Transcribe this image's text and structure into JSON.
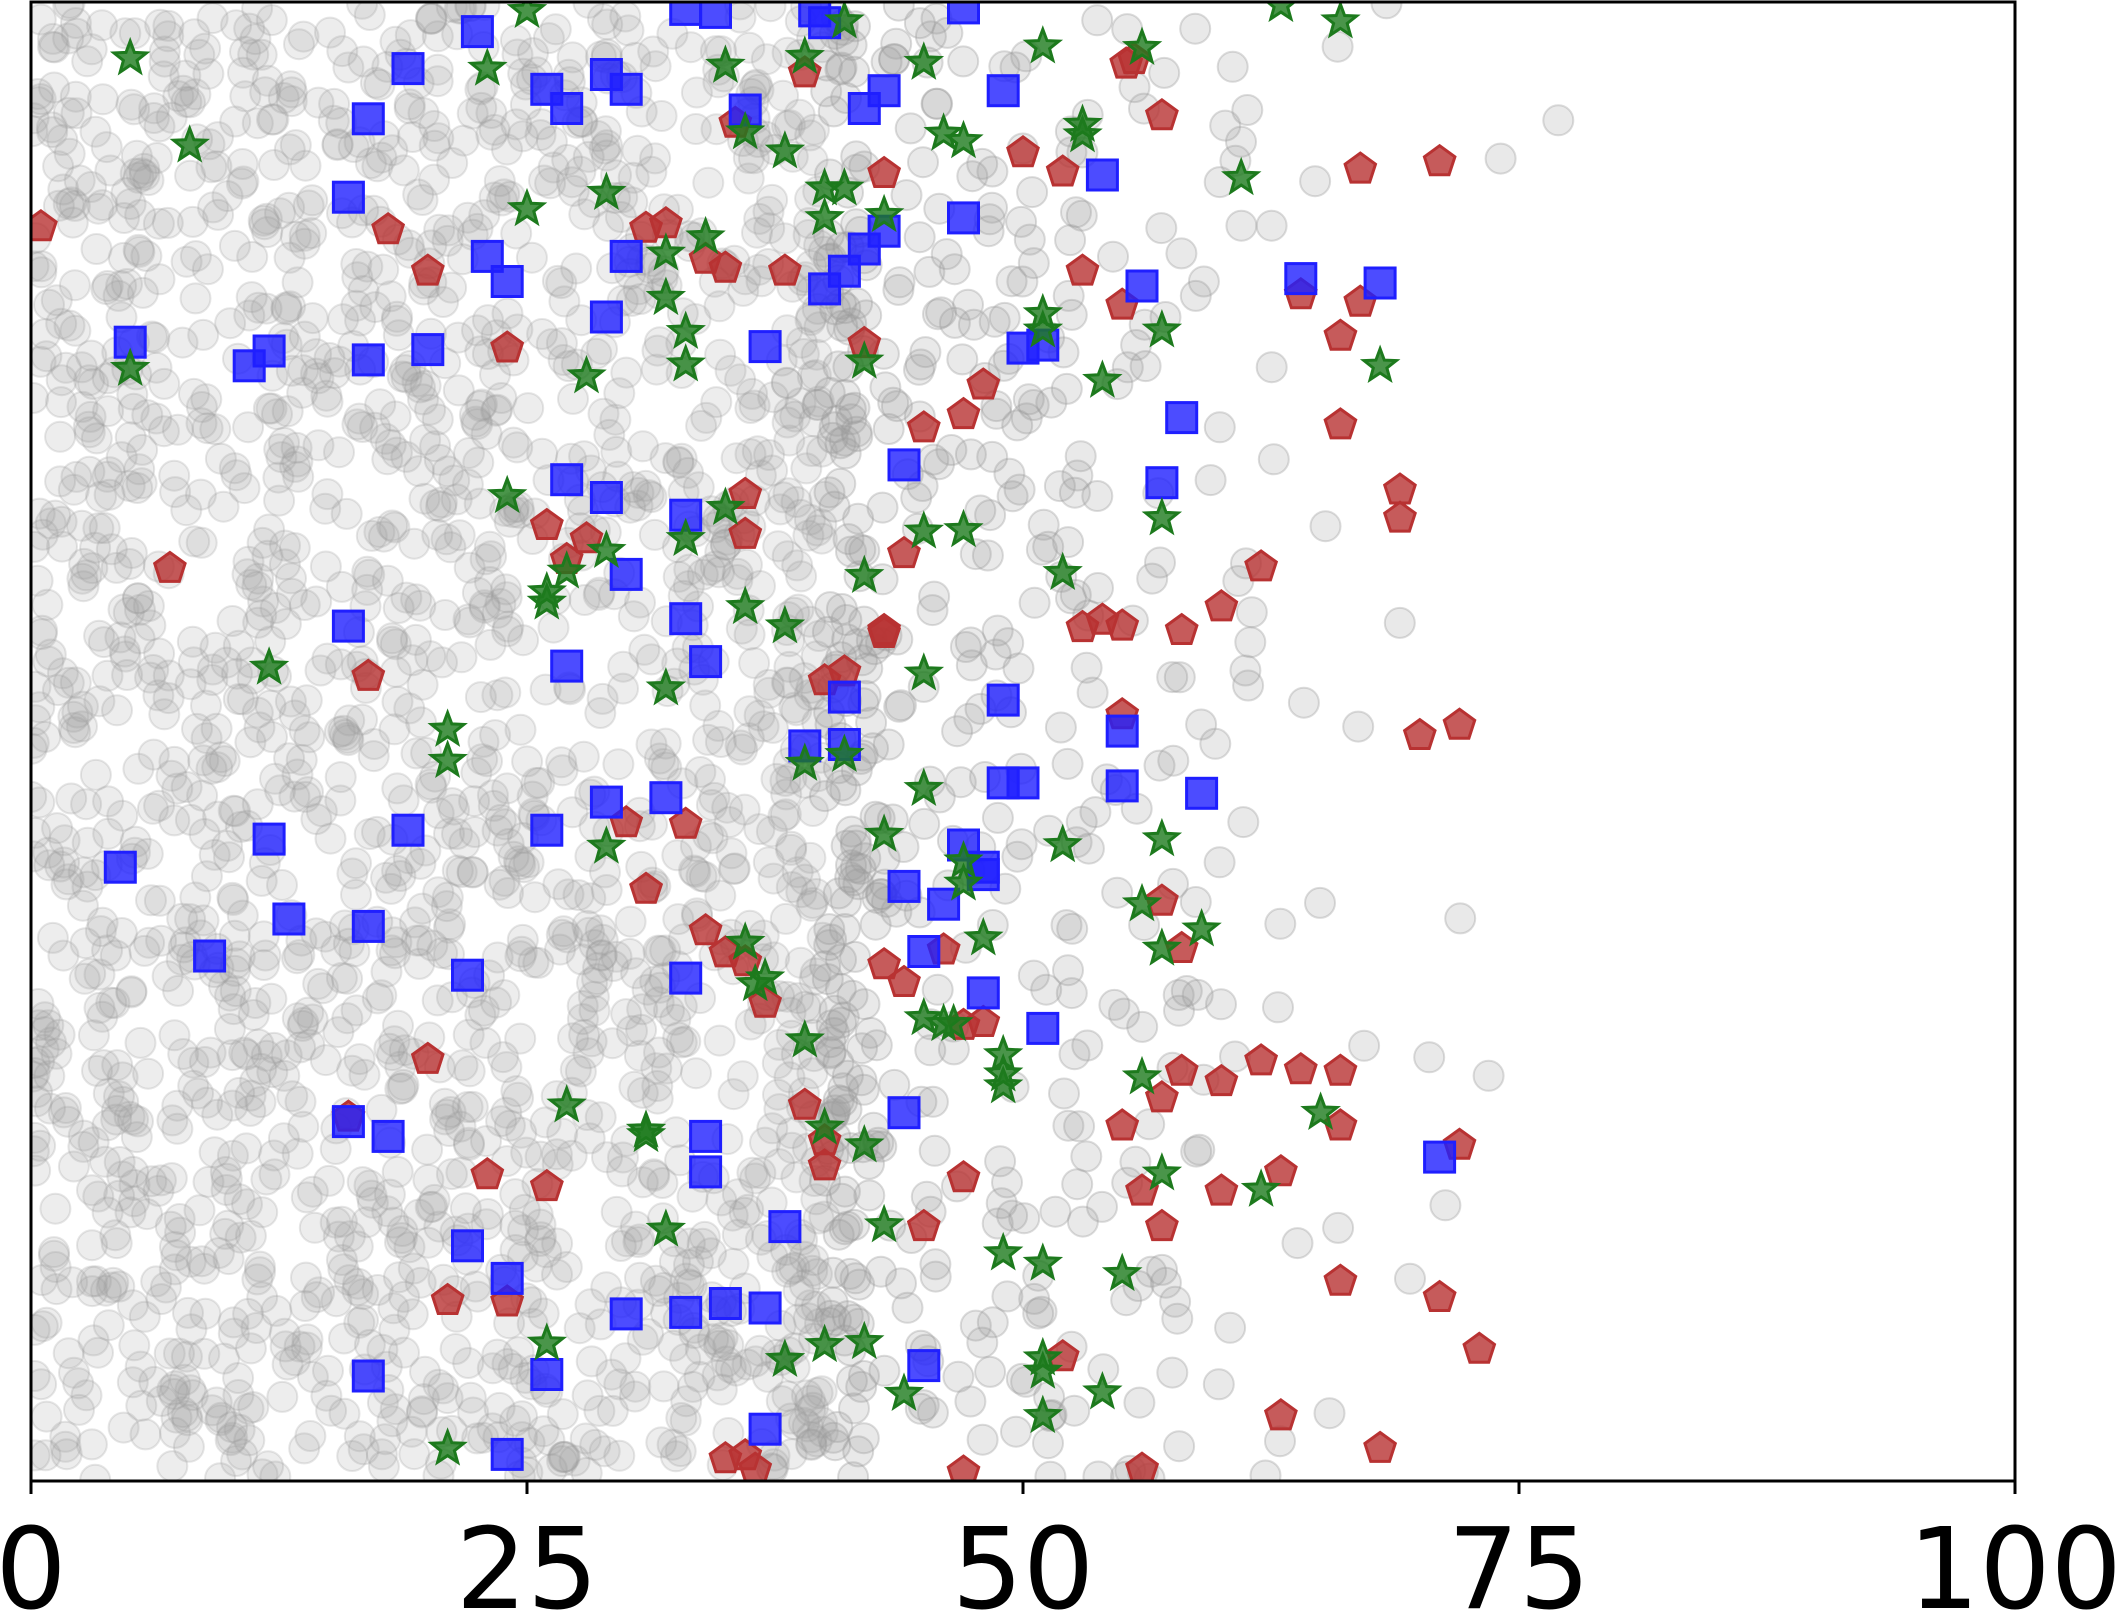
{
  "chart_data": {
    "type": "scatter",
    "title": "",
    "xlabel": "",
    "ylabel": "",
    "xlim": [
      0,
      100
    ],
    "ylim": [
      0,
      1
    ],
    "grid": false,
    "legend": "none",
    "x_ticks": [
      0,
      25,
      50,
      75,
      100
    ],
    "x_tick_labels": [
      "0",
      "25",
      "50",
      "75",
      "100"
    ],
    "colors": {
      "background_cloud": "#9a9a9a",
      "red_pentagon": "#b83232",
      "blue_square": "#1f1fff",
      "green_star": "#1d7a1d",
      "axis": "#000000"
    },
    "series": [
      {
        "marker": "pentagon",
        "color": "#b83232",
        "points": [
          [
            0.5,
            0.848
          ],
          [
            18,
            0.846
          ],
          [
            20,
            0.818
          ],
          [
            7,
            0.617
          ],
          [
            17,
            0.544
          ],
          [
            24,
            0.766
          ],
          [
            31,
            0.847
          ],
          [
            32,
            0.85
          ],
          [
            34,
            0.826
          ],
          [
            35,
            0.82
          ],
          [
            38,
            0.818
          ],
          [
            39,
            0.952
          ],
          [
            35.5,
            0.918
          ],
          [
            43,
            0.884
          ],
          [
            42,
            0.769
          ],
          [
            45,
            0.712
          ],
          [
            47,
            0.721
          ],
          [
            48,
            0.741
          ],
          [
            50,
            0.898
          ],
          [
            52,
            0.885
          ],
          [
            53,
            0.818
          ],
          [
            55,
            0.795
          ],
          [
            55.2,
            0.958
          ],
          [
            55.6,
            0.961
          ],
          [
            57,
            0.923
          ],
          [
            58,
            0.575
          ],
          [
            62,
            0.618
          ],
          [
            64,
            0.802
          ],
          [
            66,
            0.774
          ],
          [
            66,
            0.714
          ],
          [
            67,
            0.887
          ],
          [
            67,
            0.797
          ],
          [
            69,
            0.67
          ],
          [
            69,
            0.651
          ],
          [
            71,
            0.892
          ],
          [
            60,
            0.591
          ],
          [
            54,
            0.582
          ],
          [
            55,
            0.578
          ],
          [
            53,
            0.577
          ],
          [
            44,
            0.627
          ],
          [
            36,
            0.667
          ],
          [
            36,
            0.64
          ],
          [
            28,
            0.637
          ],
          [
            27,
            0.623
          ],
          [
            26,
            0.646
          ],
          [
            40,
            0.541
          ],
          [
            41,
            0.547
          ],
          [
            43,
            0.575
          ],
          [
            43,
            0.573
          ],
          [
            30,
            0.445
          ],
          [
            31,
            0.4
          ],
          [
            33,
            0.444
          ],
          [
            34,
            0.372
          ],
          [
            35,
            0.357
          ],
          [
            36,
            0.351
          ],
          [
            37,
            0.323
          ],
          [
            39,
            0.254
          ],
          [
            40,
            0.23
          ],
          [
            40,
            0.213
          ],
          [
            43,
            0.349
          ],
          [
            44,
            0.337
          ],
          [
            46,
            0.359
          ],
          [
            47,
            0.308
          ],
          [
            48,
            0.31
          ],
          [
            55,
            0.518
          ],
          [
            57,
            0.392
          ],
          [
            58,
            0.36
          ],
          [
            62,
            0.284
          ],
          [
            64,
            0.278
          ],
          [
            66,
            0.277
          ],
          [
            16,
            0.246
          ],
          [
            20,
            0.285
          ],
          [
            23,
            0.207
          ],
          [
            26,
            0.199
          ],
          [
            21,
            0.122
          ],
          [
            24,
            0.121
          ],
          [
            35,
            0.015
          ],
          [
            36,
            0.017
          ],
          [
            36.5,
            0.008
          ],
          [
            47,
            0.006
          ],
          [
            52,
            0.084
          ],
          [
            55,
            0.24
          ],
          [
            56,
            0.196
          ],
          [
            57,
            0.172
          ],
          [
            58,
            0.277
          ],
          [
            60,
            0.27
          ],
          [
            63,
            0.209
          ],
          [
            66,
            0.24
          ],
          [
            72,
            0.227
          ],
          [
            71,
            0.124
          ],
          [
            73,
            0.089
          ],
          [
            70,
            0.504
          ],
          [
            72,
            0.511
          ],
          [
            60,
            0.196
          ],
          [
            66,
            0.135
          ],
          [
            68,
            0.022
          ],
          [
            63,
            0.044
          ],
          [
            56,
            0.008
          ],
          [
            45,
            0.172
          ],
          [
            47,
            0.205
          ],
          [
            57,
            0.259
          ]
        ]
      },
      {
        "marker": "square",
        "color": "#1f1fff",
        "points": [
          [
            22.5,
            0.98
          ],
          [
            33,
            0.995
          ],
          [
            34.5,
            0.993
          ],
          [
            39.5,
            0.994
          ],
          [
            40,
            0.986
          ],
          [
            47,
            0.996
          ],
          [
            19,
            0.955
          ],
          [
            17,
            0.921
          ],
          [
            26,
            0.941
          ],
          [
            27,
            0.928
          ],
          [
            29,
            0.951
          ],
          [
            30,
            0.941
          ],
          [
            36,
            0.927
          ],
          [
            42,
            0.928
          ],
          [
            43,
            0.94
          ],
          [
            49,
            0.94
          ],
          [
            54,
            0.883
          ],
          [
            16,
            0.868
          ],
          [
            23,
            0.828
          ],
          [
            24,
            0.811
          ],
          [
            30,
            0.828
          ],
          [
            43,
            0.845
          ],
          [
            42,
            0.833
          ],
          [
            41,
            0.818
          ],
          [
            40,
            0.806
          ],
          [
            47,
            0.854
          ],
          [
            56,
            0.808
          ],
          [
            64,
            0.813
          ],
          [
            68,
            0.81
          ],
          [
            5,
            0.77
          ],
          [
            11,
            0.754
          ],
          [
            12,
            0.764
          ],
          [
            17,
            0.758
          ],
          [
            20,
            0.765
          ],
          [
            29,
            0.787
          ],
          [
            37,
            0.767
          ],
          [
            50,
            0.766
          ],
          [
            51,
            0.768
          ],
          [
            58,
            0.719
          ],
          [
            44,
            0.687
          ],
          [
            27,
            0.677
          ],
          [
            29,
            0.665
          ],
          [
            33,
            0.653
          ],
          [
            57,
            0.675
          ],
          [
            30,
            0.613
          ],
          [
            33,
            0.583
          ],
          [
            34,
            0.554
          ],
          [
            16,
            0.578
          ],
          [
            27,
            0.551
          ],
          [
            41,
            0.53
          ],
          [
            49,
            0.528
          ],
          [
            55,
            0.507
          ],
          [
            39,
            0.497
          ],
          [
            41,
            0.498
          ],
          [
            49,
            0.472
          ],
          [
            50,
            0.472
          ],
          [
            55,
            0.47
          ],
          [
            59,
            0.465
          ],
          [
            4.5,
            0.415
          ],
          [
            12,
            0.434
          ],
          [
            13,
            0.38
          ],
          [
            19,
            0.44
          ],
          [
            26,
            0.44
          ],
          [
            29,
            0.459
          ],
          [
            32,
            0.462
          ],
          [
            47,
            0.43
          ],
          [
            46,
            0.39
          ],
          [
            48,
            0.415
          ],
          [
            48,
            0.41
          ],
          [
            44,
            0.402
          ],
          [
            45,
            0.358
          ],
          [
            17,
            0.375
          ],
          [
            9,
            0.355
          ],
          [
            22,
            0.342
          ],
          [
            33,
            0.34
          ],
          [
            48,
            0.33
          ],
          [
            51,
            0.306
          ],
          [
            44,
            0.249
          ],
          [
            16,
            0.243
          ],
          [
            18,
            0.233
          ],
          [
            34,
            0.233
          ],
          [
            34,
            0.209
          ],
          [
            71,
            0.219
          ],
          [
            38,
            0.172
          ],
          [
            22,
            0.159
          ],
          [
            24,
            0.137
          ],
          [
            30,
            0.113
          ],
          [
            33,
            0.114
          ],
          [
            35,
            0.12
          ],
          [
            37,
            0.117
          ],
          [
            17,
            0.071
          ],
          [
            26,
            0.072
          ],
          [
            24,
            0.018
          ],
          [
            37,
            0.035
          ],
          [
            45,
            0.078
          ]
        ]
      },
      {
        "marker": "star",
        "color": "#1d7a1d",
        "points": [
          [
            5,
            0.962
          ],
          [
            25,
            0.994
          ],
          [
            23,
            0.955
          ],
          [
            35,
            0.957
          ],
          [
            39,
            0.963
          ],
          [
            41,
            0.987
          ],
          [
            45,
            0.959
          ],
          [
            8,
            0.903
          ],
          [
            36,
            0.912
          ],
          [
            38,
            0.899
          ],
          [
            46,
            0.911
          ],
          [
            47,
            0.906
          ],
          [
            51,
            0.97
          ],
          [
            53,
            0.917
          ],
          [
            53,
            0.91
          ],
          [
            56,
            0.969
          ],
          [
            63,
            0.998
          ],
          [
            66,
            0.987
          ],
          [
            61,
            0.881
          ],
          [
            25,
            0.86
          ],
          [
            29,
            0.871
          ],
          [
            34,
            0.841
          ],
          [
            32,
            0.83
          ],
          [
            40,
            0.874
          ],
          [
            41,
            0.874
          ],
          [
            40,
            0.854
          ],
          [
            43,
            0.856
          ],
          [
            5,
            0.752
          ],
          [
            28,
            0.747
          ],
          [
            32,
            0.8
          ],
          [
            33,
            0.777
          ],
          [
            33,
            0.755
          ],
          [
            42,
            0.757
          ],
          [
            51,
            0.789
          ],
          [
            51,
            0.778
          ],
          [
            54,
            0.744
          ],
          [
            57,
            0.778
          ],
          [
            68,
            0.754
          ],
          [
            24,
            0.666
          ],
          [
            27,
            0.615
          ],
          [
            29,
            0.629
          ],
          [
            33,
            0.637
          ],
          [
            35,
            0.658
          ],
          [
            26,
            0.601
          ],
          [
            26,
            0.594
          ],
          [
            36,
            0.591
          ],
          [
            42,
            0.612
          ],
          [
            45,
            0.642
          ],
          [
            47,
            0.643
          ],
          [
            52,
            0.614
          ],
          [
            57,
            0.651
          ],
          [
            12,
            0.55
          ],
          [
            32,
            0.536
          ],
          [
            38,
            0.578
          ],
          [
            45,
            0.546
          ],
          [
            39,
            0.485
          ],
          [
            41,
            0.491
          ],
          [
            45,
            0.468
          ],
          [
            21,
            0.508
          ],
          [
            21,
            0.487
          ],
          [
            29,
            0.429
          ],
          [
            43,
            0.437
          ],
          [
            47,
            0.419
          ],
          [
            52,
            0.43
          ],
          [
            57,
            0.434
          ],
          [
            47,
            0.404
          ],
          [
            48,
            0.367
          ],
          [
            56,
            0.39
          ],
          [
            59,
            0.373
          ],
          [
            57,
            0.36
          ],
          [
            36,
            0.364
          ],
          [
            37,
            0.34
          ],
          [
            36.5,
            0.336
          ],
          [
            39,
            0.298
          ],
          [
            40,
            0.239
          ],
          [
            42,
            0.227
          ],
          [
            43,
            0.173
          ],
          [
            27,
            0.254
          ],
          [
            31,
            0.237
          ],
          [
            31,
            0.234
          ],
          [
            32,
            0.17
          ],
          [
            45,
            0.313
          ],
          [
            46,
            0.309
          ],
          [
            46.5,
            0.309
          ],
          [
            49,
            0.288
          ],
          [
            49,
            0.275
          ],
          [
            49,
            0.267
          ],
          [
            56,
            0.273
          ],
          [
            57,
            0.208
          ],
          [
            62,
            0.197
          ],
          [
            65,
            0.249
          ],
          [
            49,
            0.154
          ],
          [
            51,
            0.147
          ],
          [
            55,
            0.14
          ],
          [
            26,
            0.093
          ],
          [
            38,
            0.082
          ],
          [
            40,
            0.092
          ],
          [
            42,
            0.094
          ],
          [
            44,
            0.059
          ],
          [
            51,
            0.074
          ],
          [
            51,
            0.083
          ],
          [
            51,
            0.044
          ],
          [
            54,
            0.06
          ],
          [
            21,
            0.022
          ]
        ]
      }
    ]
  }
}
